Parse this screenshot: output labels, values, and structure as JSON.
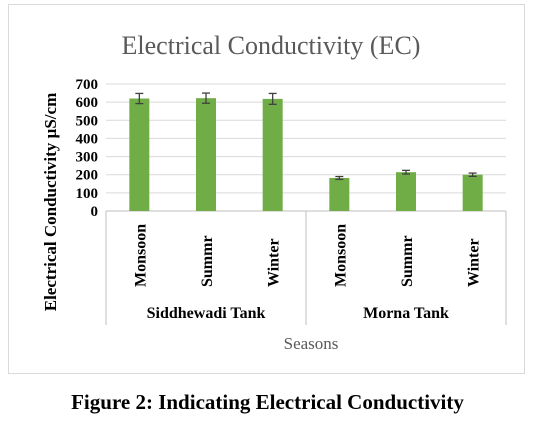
{
  "caption": "Figure 2: Indicating Electrical Conductivity",
  "chart_data": {
    "type": "bar",
    "title": "Electrical Conductivity (EC)",
    "xlabel": "Seasons",
    "ylabel": "Electrical Conductivity µS/cm",
    "ylim": [
      0,
      700
    ],
    "yticks": [
      0,
      100,
      200,
      300,
      400,
      500,
      600,
      700
    ],
    "grid": true,
    "legend": "none",
    "groups": [
      {
        "name": "Siddhewadi Tank",
        "categories": [
          "Monsoon",
          "Summr",
          "Winter"
        ]
      },
      {
        "name": "Morna Tank",
        "categories": [
          "Monsoon",
          "Summr",
          "Winter"
        ]
      }
    ],
    "categories": [
      "Monsoon",
      "Summr",
      "Winter",
      "Monsoon",
      "Summr",
      "Winter"
    ],
    "values": [
      620,
      622,
      618,
      182,
      214,
      200
    ],
    "errors": [
      28,
      28,
      30,
      8,
      10,
      9
    ],
    "bar_color": "#70ad47",
    "grid_color": "#d9d9d9",
    "axis_color": "#bfbfbf",
    "error_color": "#404040"
  }
}
